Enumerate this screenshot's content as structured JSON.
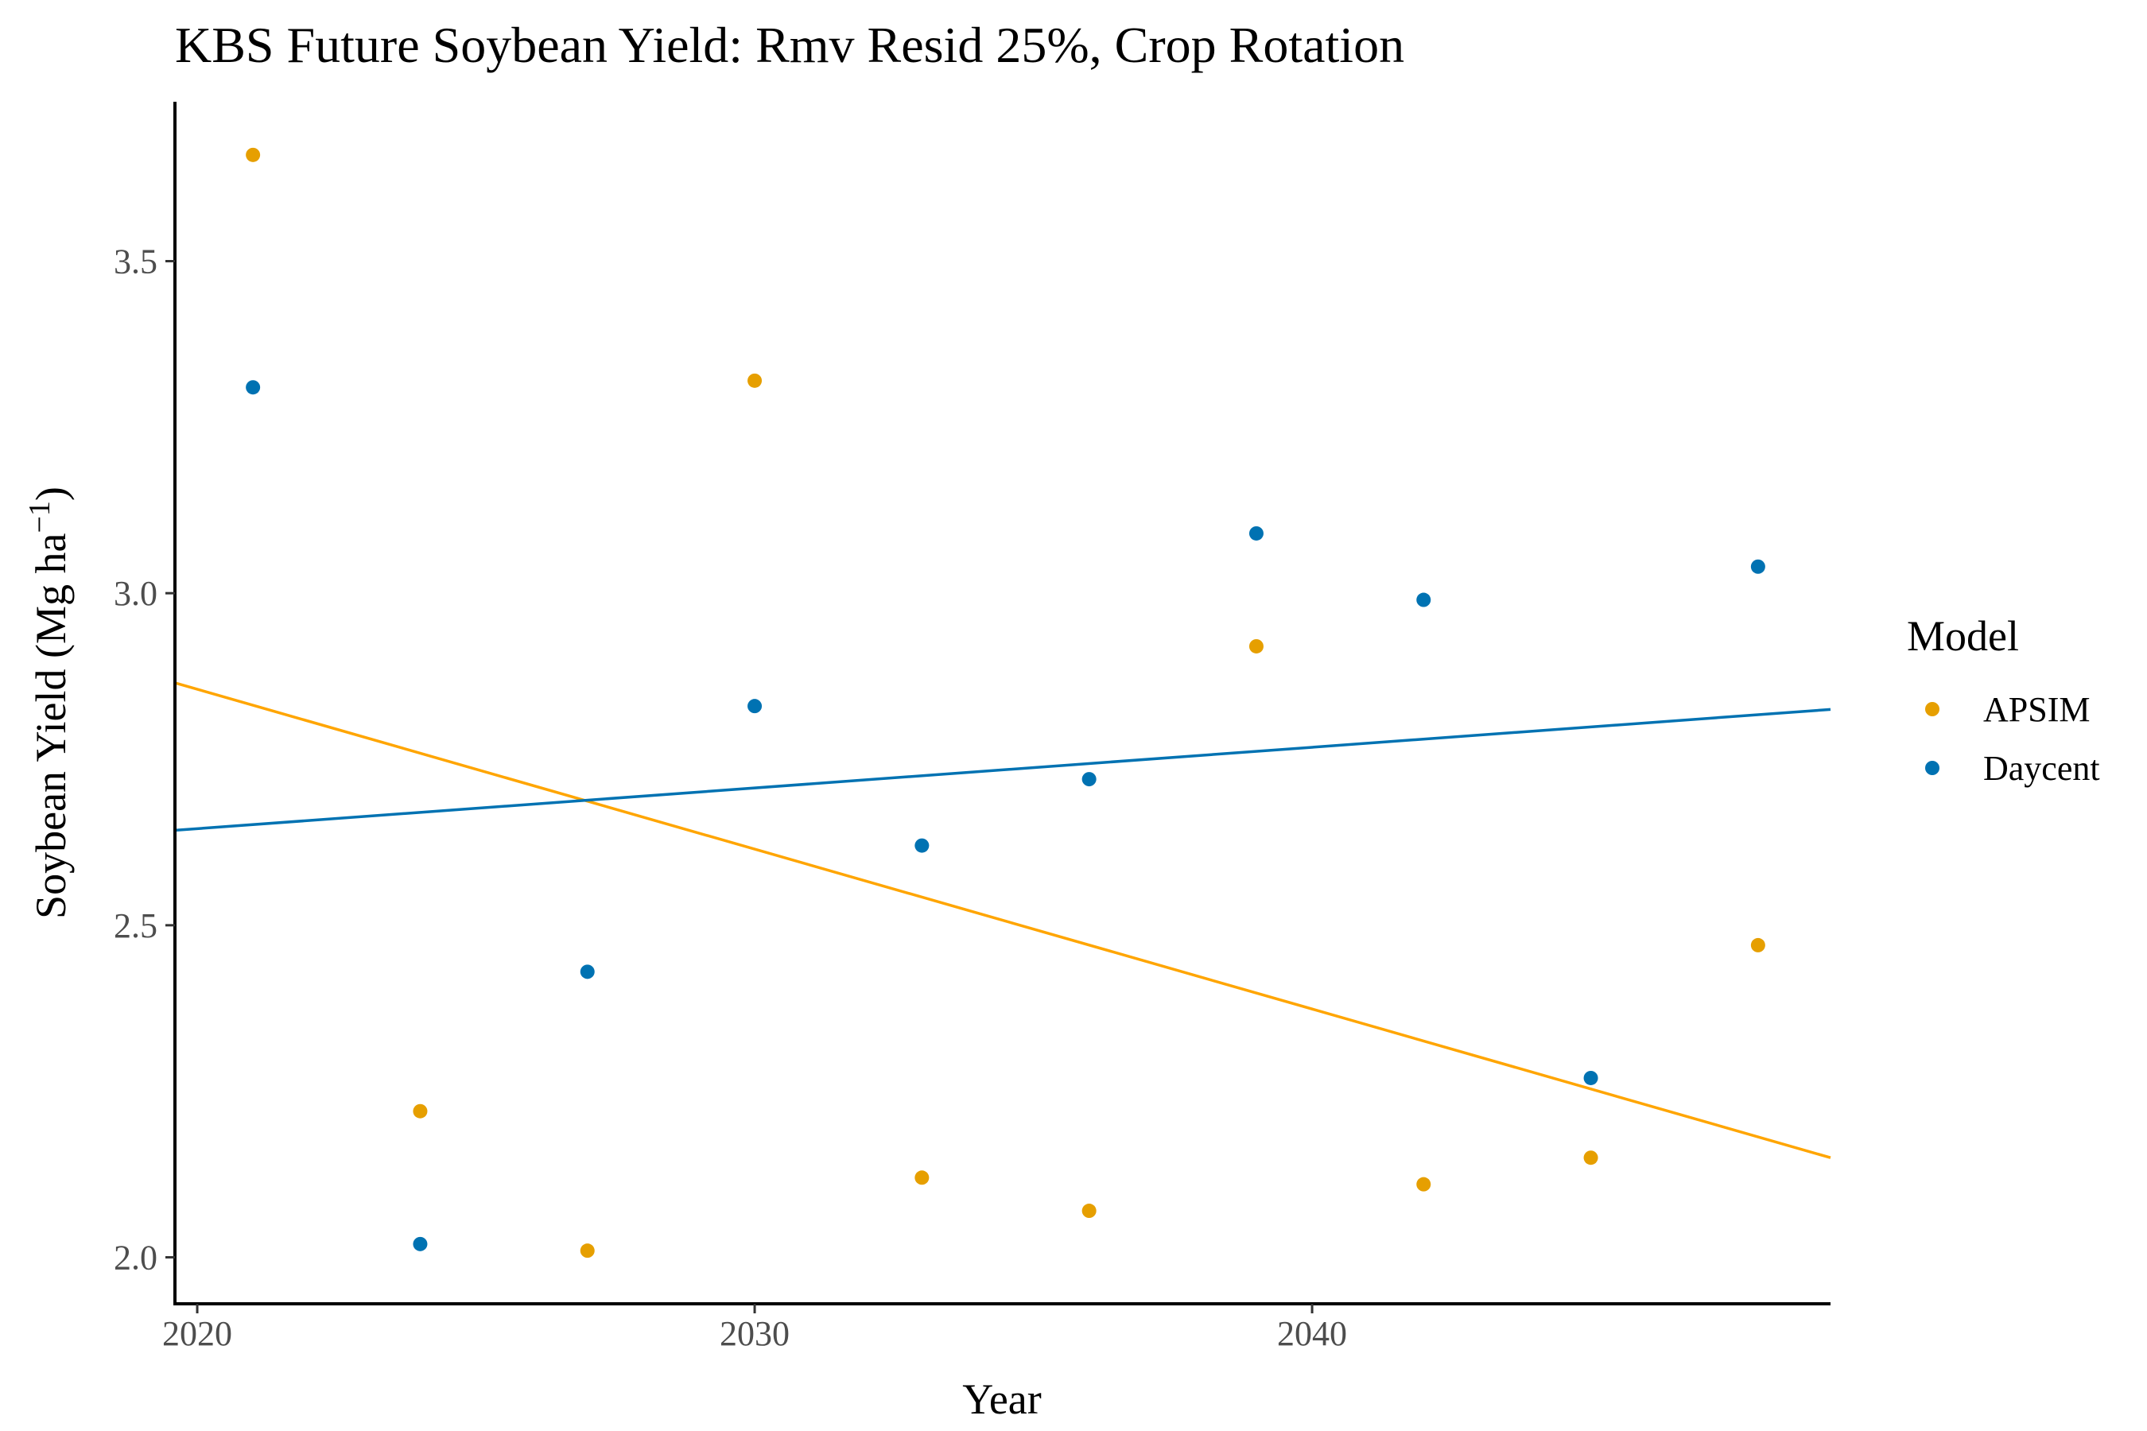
{
  "chart_data": {
    "type": "scatter",
    "title": "KBS Future Soybean Yield:  Rmv Resid 25%, Crop Rotation",
    "xlabel": "Year",
    "ylabel_main": "Soybean Yield (Mg ha",
    "ylabel_sup": "−1",
    "ylabel_close": ")",
    "xlim": [
      2019.6,
      2049.3
    ],
    "ylim": [
      1.93,
      3.74
    ],
    "x_ticks": [
      2020,
      2030,
      2040
    ],
    "x_tick_labels": [
      "2020",
      "2030",
      "2040"
    ],
    "y_ticks": [
      2.0,
      2.5,
      3.0,
      3.5
    ],
    "y_tick_labels": [
      "2.0",
      "2.5",
      "3.0",
      "3.5"
    ],
    "grid": false,
    "legend": {
      "title": "Model",
      "placement": "right",
      "entries": [
        "APSIM",
        "Daycent"
      ]
    },
    "series": [
      {
        "name": "APSIM",
        "color": "#E69F00",
        "trend_color": "#FFA500",
        "x": [
          2021,
          2024,
          2027,
          2030,
          2033,
          2036,
          2039,
          2042,
          2045,
          2048
        ],
        "y": [
          3.66,
          2.22,
          2.01,
          3.32,
          2.12,
          2.07,
          2.92,
          2.11,
          2.15,
          2.47
        ],
        "trend": {
          "x": [
            2019.6,
            2049.3
          ],
          "y": [
            2.865,
            2.15
          ]
        }
      },
      {
        "name": "Daycent",
        "color": "#0072B2",
        "trend_color": "#0072B2",
        "x": [
          2021,
          2024,
          2027,
          2030,
          2033,
          2036,
          2039,
          2042,
          2045,
          2048
        ],
        "y": [
          3.31,
          2.02,
          2.43,
          2.83,
          2.62,
          2.72,
          3.09,
          2.99,
          2.27,
          3.04
        ],
        "trend": {
          "x": [
            2019.6,
            2049.3
          ],
          "y": [
            2.643,
            2.825
          ]
        }
      }
    ]
  }
}
